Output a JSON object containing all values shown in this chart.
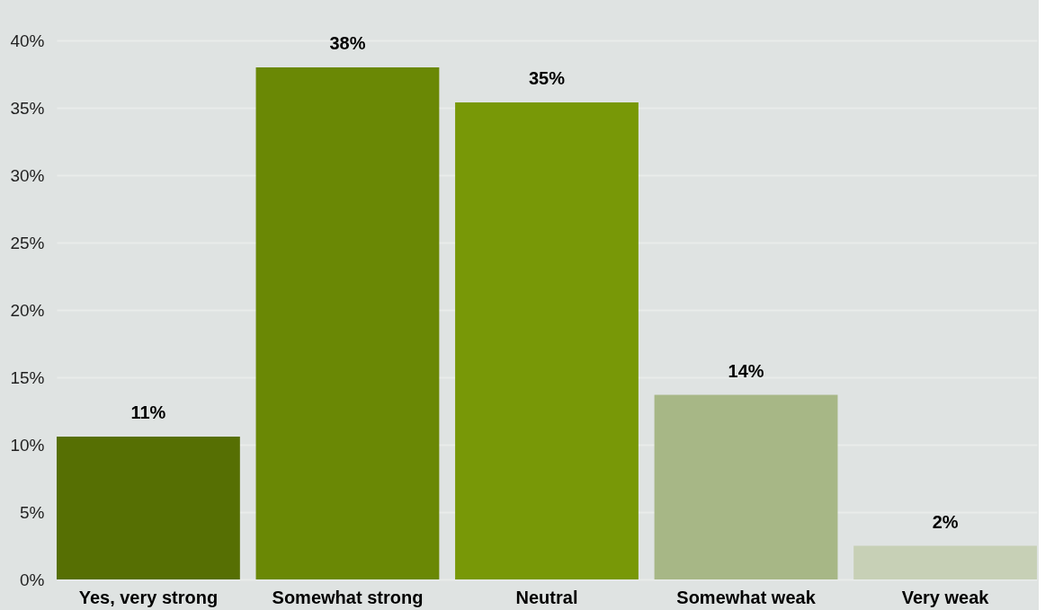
{
  "chart_data": {
    "type": "bar",
    "categories": [
      "Yes, very strong",
      "Somewhat strong",
      "Neutral",
      "Somewhat weak",
      "Very weak"
    ],
    "values": [
      10.6,
      38.0,
      35.4,
      13.7,
      2.5
    ],
    "colors": [
      "#566f03",
      "#6a8805",
      "#789807",
      "#a7b786",
      "#c7d0b6"
    ],
    "value_labels": [
      "11%",
      "38%",
      "35%",
      "14%",
      "2%"
    ],
    "ylim": [
      0,
      40
    ],
    "yticks": [
      {
        "value": 0,
        "label": "0%"
      },
      {
        "value": 5,
        "label": "5%"
      },
      {
        "value": 10,
        "label": "10%"
      },
      {
        "value": 15,
        "label": "15%"
      },
      {
        "value": 20,
        "label": "20%"
      },
      {
        "value": 25,
        "label": "25%"
      },
      {
        "value": 30,
        "label": "30%"
      },
      {
        "value": 35,
        "label": "35%"
      },
      {
        "value": 40,
        "label": "40%"
      }
    ],
    "grid": "y"
  }
}
